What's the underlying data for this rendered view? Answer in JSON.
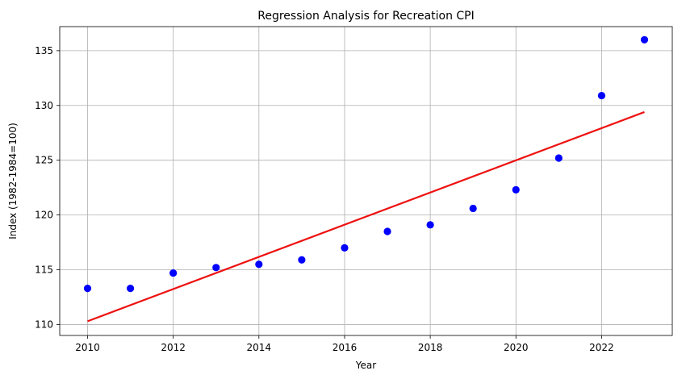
{
  "chart_data": {
    "type": "scatter",
    "title": "Regression Analysis for Recreation CPI",
    "xlabel": "Year",
    "ylabel": "Index (1982-1984=100)",
    "xlim": [
      2009.35,
      2023.65
    ],
    "ylim": [
      109.0,
      137.2
    ],
    "xticks": [
      2010,
      2012,
      2014,
      2016,
      2018,
      2020,
      2022
    ],
    "yticks": [
      110,
      115,
      120,
      125,
      130,
      135
    ],
    "grid": true,
    "points": {
      "color": "#0000ff",
      "x": [
        2010,
        2011,
        2012,
        2013,
        2014,
        2015,
        2016,
        2017,
        2018,
        2019,
        2020,
        2021,
        2022,
        2023
      ],
      "y": [
        113.3,
        113.3,
        114.7,
        115.2,
        115.5,
        115.9,
        117.0,
        118.5,
        119.1,
        120.6,
        122.3,
        125.2,
        130.9,
        136.0
      ]
    },
    "regression_line": {
      "color": "#ee1111",
      "x": [
        2010,
        2023
      ],
      "y": [
        110.3,
        129.4
      ]
    }
  }
}
